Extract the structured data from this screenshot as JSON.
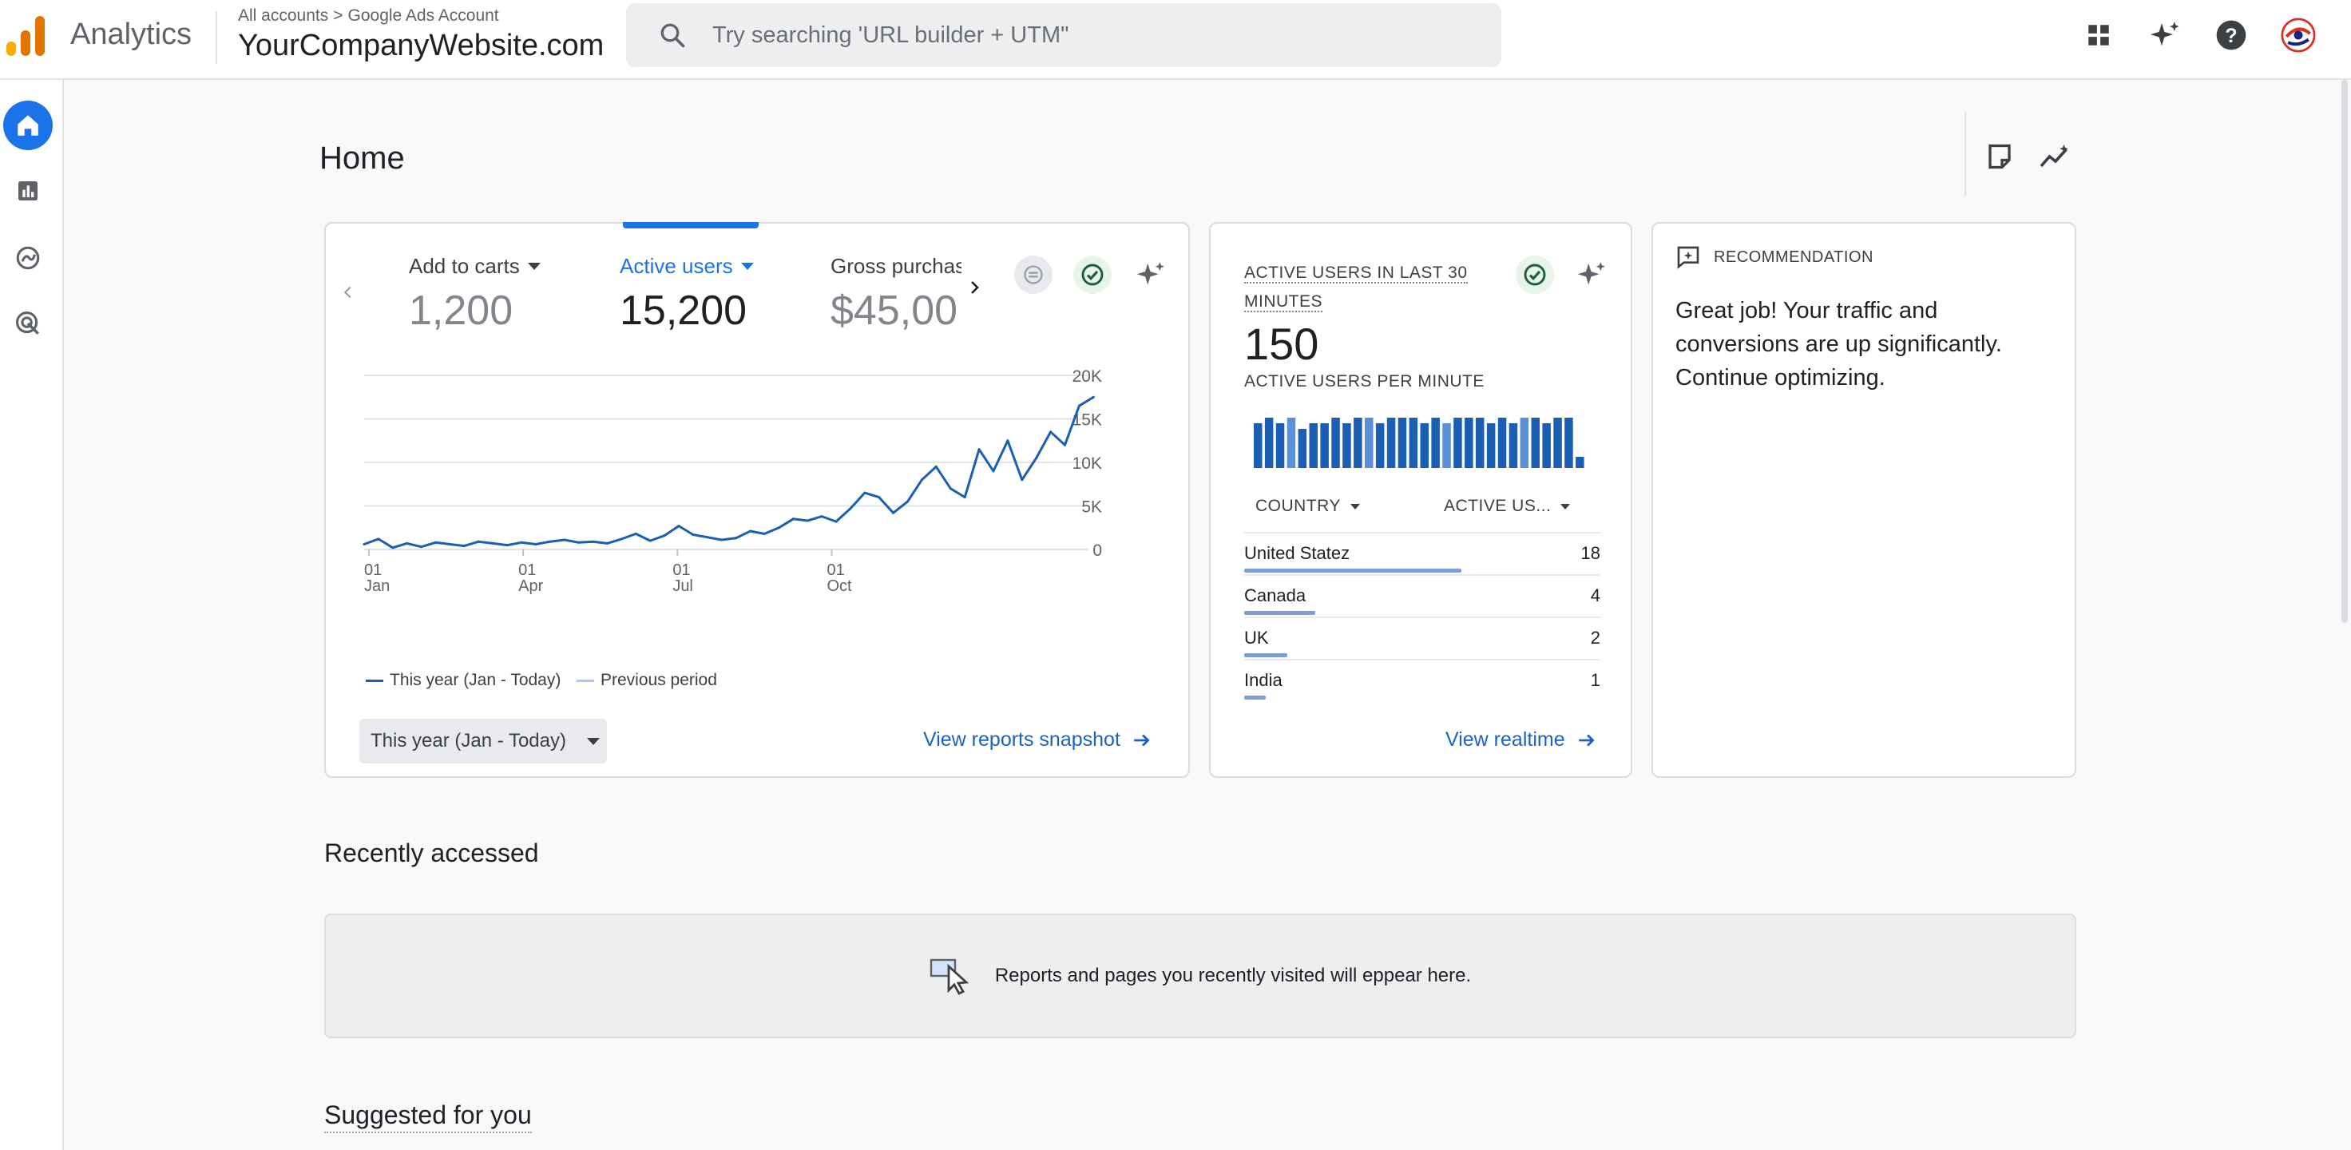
{
  "header": {
    "app_name": "Analytics",
    "breadcrumb": [
      "All accounts",
      ">",
      "Google Ads Account"
    ],
    "property_name": "YourCompanyWebsite.com",
    "search_placeholder": "Try searching 'URL builder + UTM\"",
    "icons": [
      "apps-grid-icon",
      "sparkle-icon",
      "help-icon",
      "account-avatar-icon"
    ],
    "logo_colors": [
      "#f9ab00",
      "#e37400",
      "#e37400"
    ]
  },
  "rail": {
    "items": [
      "home-icon",
      "reports-icon",
      "explore-icon",
      "advertising-icon"
    ],
    "active_color": "#1a73e8"
  },
  "page": {
    "title": "Home",
    "tools": [
      "customize-card-icon",
      "insights-icon"
    ]
  },
  "main_card": {
    "metrics": [
      {
        "label": "Add to carts",
        "value": "1,200",
        "active": false
      },
      {
        "label": "Active users",
        "value": "15,200",
        "active": true
      },
      {
        "label": "Gross purchas",
        "value": "$45,00",
        "active": false
      }
    ],
    "legend": {
      "this_year": "This year (Jan - Today)",
      "previous": "Previous period"
    },
    "date_range": "This year (Jan - Today)",
    "link": "View reports snapshot",
    "accent": "#1a73e8"
  },
  "chart_data": {
    "type": "line",
    "title": "",
    "xlabel": "",
    "ylabel": "",
    "x_tick_labels": [
      [
        "01",
        "Jan"
      ],
      [
        "01",
        "Apr"
      ],
      [
        "01",
        "Jul"
      ],
      [
        "01",
        "Oct"
      ]
    ],
    "y_tick_labels": [
      "20K",
      "15K",
      "10K",
      "5K",
      "0"
    ],
    "ylim": [
      0,
      20000
    ],
    "grid": true,
    "legend_position": "bottom-left",
    "series": [
      {
        "name": "This year (Jan - Today)",
        "color": "#1a5fb4",
        "x": [
          "Jan 1",
          "Jan 8",
          "Jan 15",
          "Jan 22",
          "Jan 29",
          "Feb 5",
          "Feb 12",
          "Feb 19",
          "Feb 26",
          "Mar 5",
          "Mar 12",
          "Mar 19",
          "Mar 26",
          "Apr 2",
          "Apr 9",
          "Apr 16",
          "Apr 23",
          "Apr 30",
          "May 7",
          "May 14",
          "May 21",
          "May 28",
          "Jun 4",
          "Jun 11",
          "Jun 18",
          "Jun 25",
          "Jul 2",
          "Jul 9",
          "Jul 16",
          "Jul 23",
          "Jul 30",
          "Aug 6",
          "Aug 13",
          "Aug 20",
          "Aug 27",
          "Sep 3",
          "Sep 10",
          "Sep 17",
          "Sep 24",
          "Oct 1",
          "Oct 8",
          "Oct 15",
          "Oct 22",
          "Oct 29",
          "Nov 5",
          "Nov 12",
          "Nov 19",
          "Nov 26",
          "Dec 3",
          "Dec 10",
          "Dec 17",
          "Dec 24"
        ],
        "values": [
          600,
          1200,
          200,
          700,
          300,
          800,
          600,
          400,
          900,
          700,
          500,
          800,
          600,
          900,
          1100,
          800,
          900,
          700,
          1200,
          1800,
          1000,
          1600,
          2700,
          1700,
          1400,
          1100,
          1300,
          2100,
          1800,
          2500,
          3500,
          3300,
          3800,
          3200,
          4700,
          6500,
          6000,
          4200,
          5500,
          8000,
          9500,
          7000,
          6000,
          11500,
          9000,
          12500,
          8000,
          10500,
          13500,
          12000,
          16500,
          17500
        ]
      }
    ]
  },
  "realtime_card": {
    "title": "ACTIVE USERS IN LAST 30 MINUTES",
    "value": "150",
    "per_minute_label": "ACTIVE USERS PER MINUTE",
    "per_minute_values": [
      8,
      9,
      8,
      9,
      7,
      8,
      8,
      9,
      8,
      9,
      9,
      8,
      9,
      9,
      9,
      8,
      9,
      8,
      9,
      9,
      9,
      8,
      9,
      8,
      9,
      9,
      8,
      9,
      9,
      2
    ],
    "column_country": "COUNTRY",
    "column_active": "ACTIVE US...",
    "rows": [
      {
        "country": "United Statez",
        "value": "18",
        "share": 0.61
      },
      {
        "country": "Canada",
        "value": "4",
        "share": 0.2
      },
      {
        "country": "UK",
        "value": "2",
        "share": 0.12
      },
      {
        "country": "India",
        "value": "1",
        "share": 0.06
      }
    ],
    "link": "View realtime"
  },
  "recommendation_card": {
    "label": "RECOMMENDATION",
    "text": "Great job! Your traffic and conversions are up significantly. Continue optimizing."
  },
  "recently_accessed": {
    "title": "Recently accessed",
    "empty_text": "Reports and pages you recently visited will eppear here."
  },
  "suggested": {
    "title": "Suggested for you"
  }
}
